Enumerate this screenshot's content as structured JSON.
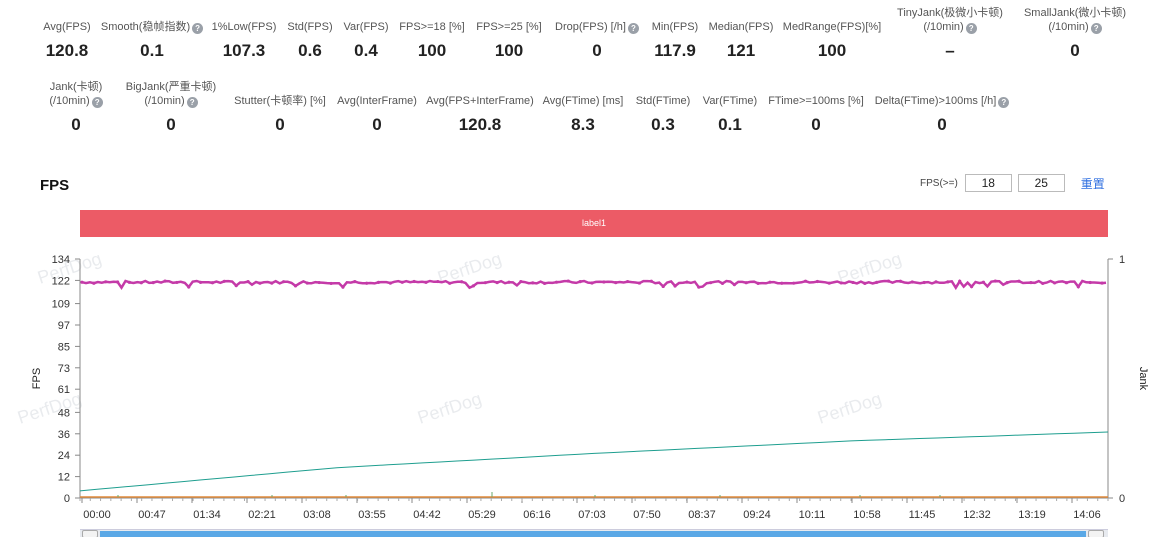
{
  "stats_row1": [
    {
      "label": "Avg(FPS)",
      "value": "120.8",
      "help": false
    },
    {
      "label": "Smooth(稳帧指数)",
      "value": "0.1",
      "help": true
    },
    {
      "label": "1%Low(FPS)",
      "value": "107.3",
      "help": false
    },
    {
      "label": "Std(FPS)",
      "value": "0.6",
      "help": false
    },
    {
      "label": "Var(FPS)",
      "value": "0.4",
      "help": false
    },
    {
      "label": "FPS>=18 [%]",
      "value": "100",
      "help": false
    },
    {
      "label": "FPS>=25 [%]",
      "value": "100",
      "help": false
    },
    {
      "label": "Drop(FPS) [/h]",
      "value": "0",
      "help": true
    },
    {
      "label": "Min(FPS)",
      "value": "117.9",
      "help": false
    },
    {
      "label": "Median(FPS)",
      "value": "121",
      "help": false
    },
    {
      "label": "MedRange(FPS)[%]",
      "value": "100",
      "help": false
    },
    {
      "label": "TinyJank(极微小卡顿)",
      "label2": "(/10min)",
      "value": "–",
      "help": true
    },
    {
      "label": "SmallJank(微小卡顿)",
      "label2": "(/10min)",
      "value": "0",
      "help": true
    }
  ],
  "stats_row2": [
    {
      "label": "Jank(卡顿)",
      "label2": "(/10min)",
      "value": "0",
      "help": true
    },
    {
      "label": "BigJank(严重卡顿)",
      "label2": "(/10min)",
      "value": "0",
      "help": true
    },
    {
      "label": "Stutter(卡顿率) [%]",
      "value": "0",
      "help": false
    },
    {
      "label": "Avg(InterFrame)",
      "value": "0",
      "help": false
    },
    {
      "label": "Avg(FPS+InterFrame)",
      "value": "120.8",
      "help": false
    },
    {
      "label": "Avg(FTime) [ms]",
      "value": "8.3",
      "help": false
    },
    {
      "label": "Std(FTime)",
      "value": "0.3",
      "help": false
    },
    {
      "label": "Var(FTime)",
      "value": "0.1",
      "help": false
    },
    {
      "label": "FTime>=100ms [%]",
      "value": "0",
      "help": false
    },
    {
      "label": "Delta(FTime)>100ms [/h]",
      "value": "0",
      "help": true
    }
  ],
  "help_glyph": "?",
  "chart_title": "FPS",
  "threshold": {
    "label": "FPS(>=)",
    "value1": "18",
    "value2": "25",
    "reset": "重置"
  },
  "label_bar": {
    "text": "label1",
    "color": "#ec5b66"
  },
  "watermark": "PerfDog",
  "chart_data": {
    "type": "line",
    "title": "FPS",
    "ylabel": "FPS",
    "y2label": "Jank",
    "ylim": [
      0,
      134
    ],
    "y2lim": [
      0,
      1
    ],
    "yticks": [
      "134",
      "122",
      "109",
      "97",
      "85",
      "73",
      "61",
      "48",
      "36",
      "24",
      "12",
      "0"
    ],
    "y2ticks": [
      "1",
      "0"
    ],
    "xticks": [
      "00:00",
      "00:47",
      "01:34",
      "02:21",
      "03:08",
      "03:55",
      "04:42",
      "05:29",
      "06:16",
      "07:03",
      "07:50",
      "08:37",
      "09:24",
      "10:11",
      "10:58",
      "11:45",
      "12:32",
      "13:19",
      "14:06"
    ],
    "series": [
      {
        "name": "FPS",
        "color": "#c43aa8",
        "style": "line+points",
        "approx_value": 121,
        "range": [
          117.9,
          122
        ]
      },
      {
        "name": "trend",
        "color": "#1e9e8f",
        "style": "line",
        "points": [
          [
            0,
            4
          ],
          [
            0.25,
            17
          ],
          [
            0.5,
            25
          ],
          [
            0.75,
            32
          ],
          [
            1,
            37
          ]
        ]
      },
      {
        "name": "Jank",
        "color": "#e08a3a",
        "style": "line",
        "approx_value": 0
      }
    ]
  },
  "colors": {
    "accent": "#2f6fe0",
    "fps_line": "#c43aa8",
    "trend_line": "#1e9e8f",
    "jank_line": "#e08a3a",
    "scroll_thumb": "#5aa8e6"
  }
}
